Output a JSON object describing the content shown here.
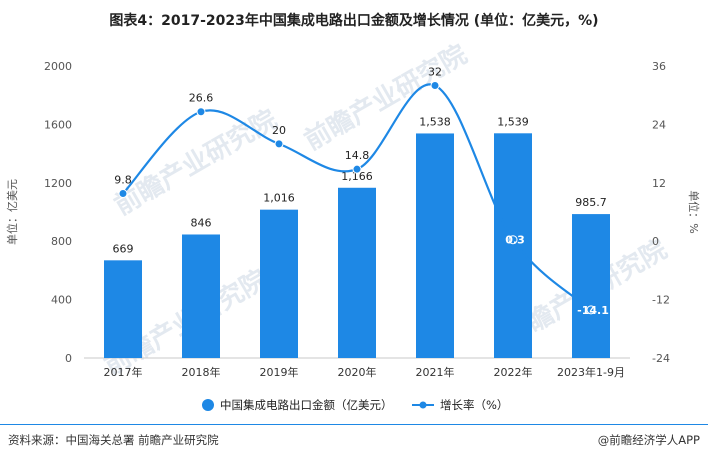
{
  "page": {
    "title": "图表4：2017-2023年中国集成电路出口金额及增长情况 (单位：亿美元，%)",
    "source": "资料来源：中国海关总署 前瞻产业研究院",
    "brand": "@前瞻经济学人APP",
    "watermark": "前瞻产业研究院"
  },
  "colors": {
    "bar": "#1e88e5",
    "line": "#1e88e5",
    "axis_text": "#555555"
  },
  "chart_data": {
    "type": "bar",
    "title": "图表4：2017-2023年中国集成电路出口金额及增长情况 (单位：亿美元，%)",
    "categories": [
      "2017年",
      "2018年",
      "2019年",
      "2020年",
      "2021年",
      "2022年",
      "2023年1-9月"
    ],
    "series": [
      {
        "name": "中国集成电路出口金额（亿美元）",
        "type": "bar",
        "axis": "left",
        "values": [
          669,
          846,
          1016,
          1166,
          1538,
          1539,
          985.7
        ],
        "labels": [
          "669",
          "846",
          "1,016",
          "1,166",
          "1,538",
          "1,539",
          "985.7"
        ]
      },
      {
        "name": "增长率（%）",
        "type": "line",
        "axis": "right",
        "values": [
          9.8,
          26.6,
          20,
          14.8,
          32,
          0.3,
          -14.1
        ],
        "labels": [
          "9.8",
          "26.6",
          "20",
          "14.8",
          "32",
          "0.3",
          "-14.1"
        ]
      }
    ],
    "ylabel_left": "单位：亿美元",
    "ylabel_right": "单位：%",
    "ylim_left": [
      0,
      2000
    ],
    "yticks_left": [
      "0",
      "400",
      "800",
      "1200",
      "1600",
      "2000"
    ],
    "ylim_right": [
      -24,
      36
    ],
    "yticks_right": [
      "-24",
      "-12",
      "0",
      "12",
      "24",
      "36"
    ],
    "legend_position": "bottom",
    "grid": false
  }
}
